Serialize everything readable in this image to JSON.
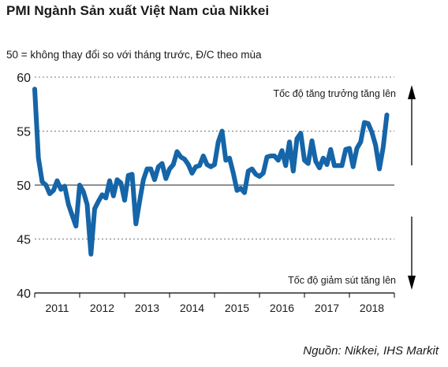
{
  "title": "PMI Ngành Sản xuất Việt Nam của Nikkei",
  "subtitle": "50 = không thay đổi so với tháng trước, Đ/C theo mùa",
  "source": "Nguồn: Nikkei, IHS Markit",
  "chart_data": {
    "type": "line",
    "ylim": [
      40,
      60
    ],
    "yticks": [
      "40",
      "45",
      "50",
      "55",
      "60"
    ],
    "reference_line": 50,
    "grid": "dotted horizontal",
    "x_labels": [
      "2011",
      "2012",
      "2013",
      "2014",
      "2015",
      "2016",
      "2017",
      "2018"
    ],
    "x_start": 2011,
    "x_end": 2019,
    "series_color": "#1565a8",
    "annotations": {
      "up": "Tốc độ tăng trưởng tăng lên",
      "down": "Tốc độ giảm sút tăng lên"
    },
    "series": [
      {
        "values": [
          58.9,
          52.5,
          50.3,
          50.0,
          49.2,
          49.5,
          50.4,
          49.6,
          49.9,
          48.2,
          47.2,
          46.2,
          50.0,
          49.4,
          48.2,
          43.6,
          47.8,
          48.5,
          49.1,
          48.8,
          50.4,
          49.0,
          50.5,
          50.2,
          48.6,
          50.9,
          51.0,
          46.4,
          48.5,
          50.5,
          51.5,
          51.5,
          50.5,
          51.7,
          52.0,
          50.6,
          51.5,
          51.9,
          53.1,
          52.6,
          52.4,
          51.9,
          51.1,
          51.7,
          51.8,
          52.7,
          51.9,
          51.7,
          51.9,
          54.0,
          55.0,
          52.3,
          52.5,
          51.1,
          49.5,
          49.7,
          49.3,
          51.3,
          51.5,
          51.0,
          50.8,
          51.1,
          52.6,
          52.7,
          52.7,
          52.3,
          53.2,
          51.8,
          54.0,
          51.3,
          54.3,
          54.8,
          52.3,
          52.0,
          54.1,
          52.2,
          51.6,
          52.5,
          51.9,
          53.3,
          51.8,
          51.8,
          51.8,
          53.3,
          53.4,
          51.7,
          53.4,
          54.0,
          55.8,
          55.7,
          54.9,
          53.7,
          51.5,
          53.5,
          56.5
        ]
      }
    ]
  }
}
